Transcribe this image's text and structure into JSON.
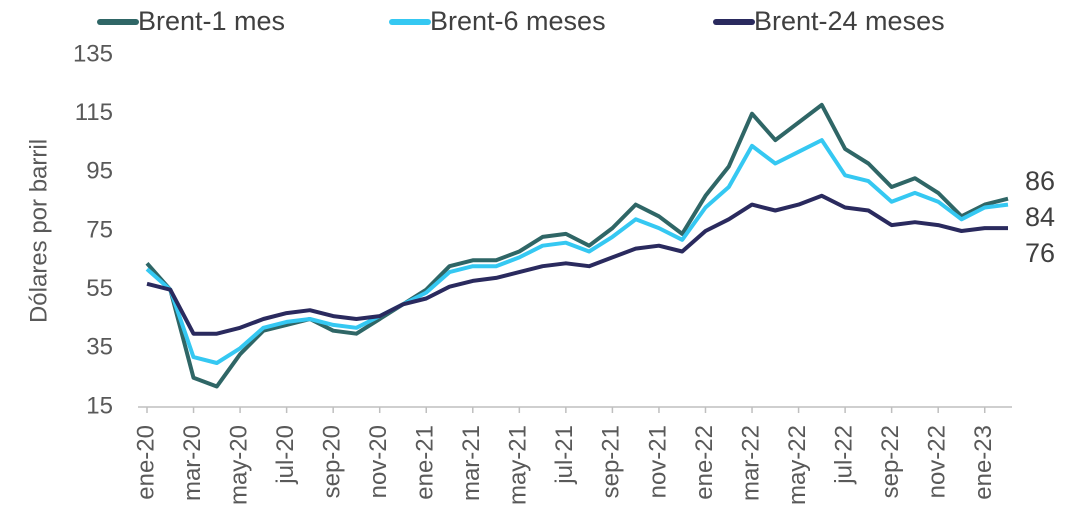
{
  "chart_data": {
    "type": "line",
    "y_axis_label": "Dólares por barril",
    "categories": [
      "ene-20",
      null,
      "mar-20",
      null,
      "may-20",
      null,
      "jul-20",
      null,
      "sep-20",
      null,
      "nov-20",
      null,
      "ene-21",
      null,
      "mar-21",
      null,
      "may-21",
      null,
      "jul-21",
      null,
      "sep-21",
      null,
      "nov-21",
      null,
      "ene-22",
      null,
      "mar-22",
      null,
      "may-22",
      null,
      "jul-22",
      null,
      "sep-22",
      null,
      "nov-22",
      null,
      "ene-23",
      null
    ],
    "series": [
      {
        "name": "Brent-1 mes",
        "color": "#2f6666",
        "values": [
          64,
          55,
          25,
          22,
          33,
          41,
          43,
          45,
          41,
          40,
          45,
          50,
          55,
          63,
          65,
          65,
          68,
          73,
          74,
          70,
          76,
          84,
          80,
          74,
          87,
          97,
          115,
          106,
          112,
          118,
          103,
          98,
          90,
          93,
          88,
          80,
          84,
          86
        ]
      },
      {
        "name": "Brent-6 meses",
        "color": "#35c8f2",
        "values": [
          62,
          55,
          32,
          30,
          35,
          42,
          44,
          45,
          43,
          42,
          46,
          50,
          54,
          61,
          63,
          63,
          66,
          70,
          71,
          68,
          73,
          79,
          76,
          72,
          83,
          90,
          104,
          98,
          102,
          106,
          94,
          92,
          85,
          88,
          85,
          79,
          83,
          84
        ]
      },
      {
        "name": "Brent-24 meses",
        "color": "#2a2a5e",
        "values": [
          57,
          55,
          40,
          40,
          42,
          45,
          47,
          48,
          46,
          45,
          46,
          50,
          52,
          56,
          58,
          59,
          61,
          63,
          64,
          63,
          66,
          69,
          70,
          68,
          75,
          79,
          84,
          82,
          84,
          87,
          83,
          82,
          77,
          78,
          77,
          75,
          76,
          76
        ]
      }
    ],
    "ylim": [
      15,
      135
    ],
    "yticks": [
      15,
      35,
      55,
      75,
      95,
      115,
      135
    ],
    "grid": false
  }
}
